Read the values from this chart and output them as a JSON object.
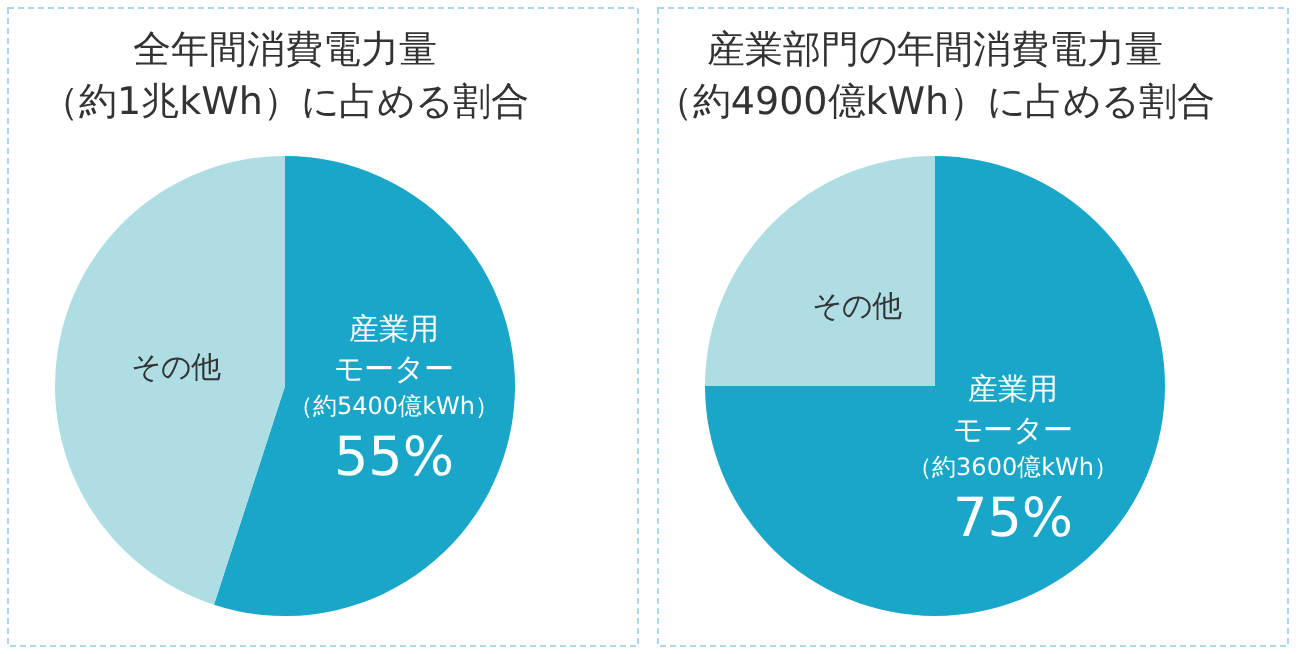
{
  "chart_data": [
    {
      "type": "pie",
      "title": "全年間消費電力量",
      "subtitle": "（約1兆kWh）に占める割合",
      "categories": [
        "産業用モーター",
        "その他"
      ],
      "values": [
        55,
        45
      ],
      "colors": [
        "#1aa6c9",
        "#aedde4"
      ],
      "value_labels": [
        "55%",
        null
      ],
      "annotations": [
        "（約5400億kWh）"
      ]
    },
    {
      "type": "pie",
      "title": "産業部門の年間消費電力量",
      "subtitle": "（約4900億kWh）に占める割合",
      "categories": [
        "産業用モーター",
        "その他"
      ],
      "values": [
        75,
        25
      ],
      "colors": [
        "#1aa6c9",
        "#aedde4"
      ],
      "value_labels": [
        "75%",
        null
      ],
      "annotations": [
        "（約3600億kWh）"
      ]
    }
  ]
}
